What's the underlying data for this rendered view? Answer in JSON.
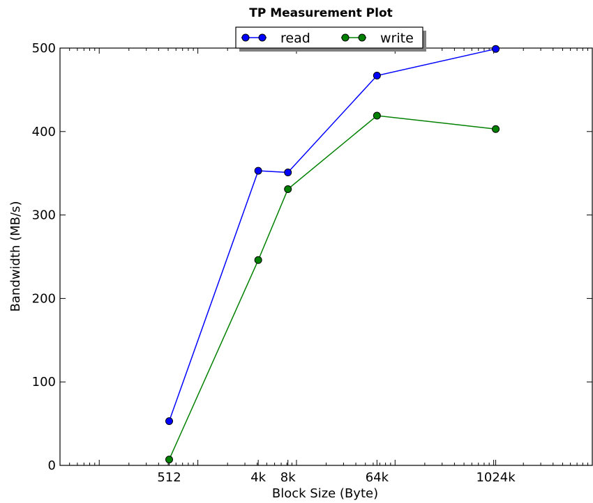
{
  "chart_data": {
    "type": "line",
    "title": "TP Measurement Plot",
    "xlabel": "Block Size (Byte)",
    "ylabel": "Bandwidth (MB/s)",
    "xscale": "log",
    "x": [
      512,
      4096,
      8192,
      65536,
      1048576
    ],
    "x_tick_labels": [
      "512",
      "4k",
      "8k",
      "64k",
      "1024k"
    ],
    "xlim": [
      40,
      10000000
    ],
    "ylim": [
      0,
      500
    ],
    "y_ticks": [
      0,
      100,
      200,
      300,
      400,
      500
    ],
    "y_tick_labels": [
      "0",
      "100",
      "200",
      "300",
      "400",
      "500"
    ],
    "grid": false,
    "legend": "top-center",
    "series": [
      {
        "name": "read",
        "color": "#0000ff",
        "marker": "circle",
        "values": [
          53,
          353,
          351,
          467,
          499
        ]
      },
      {
        "name": "write",
        "color": "#008000",
        "marker": "circle",
        "values": [
          7,
          246,
          331,
          419,
          403
        ]
      }
    ]
  }
}
